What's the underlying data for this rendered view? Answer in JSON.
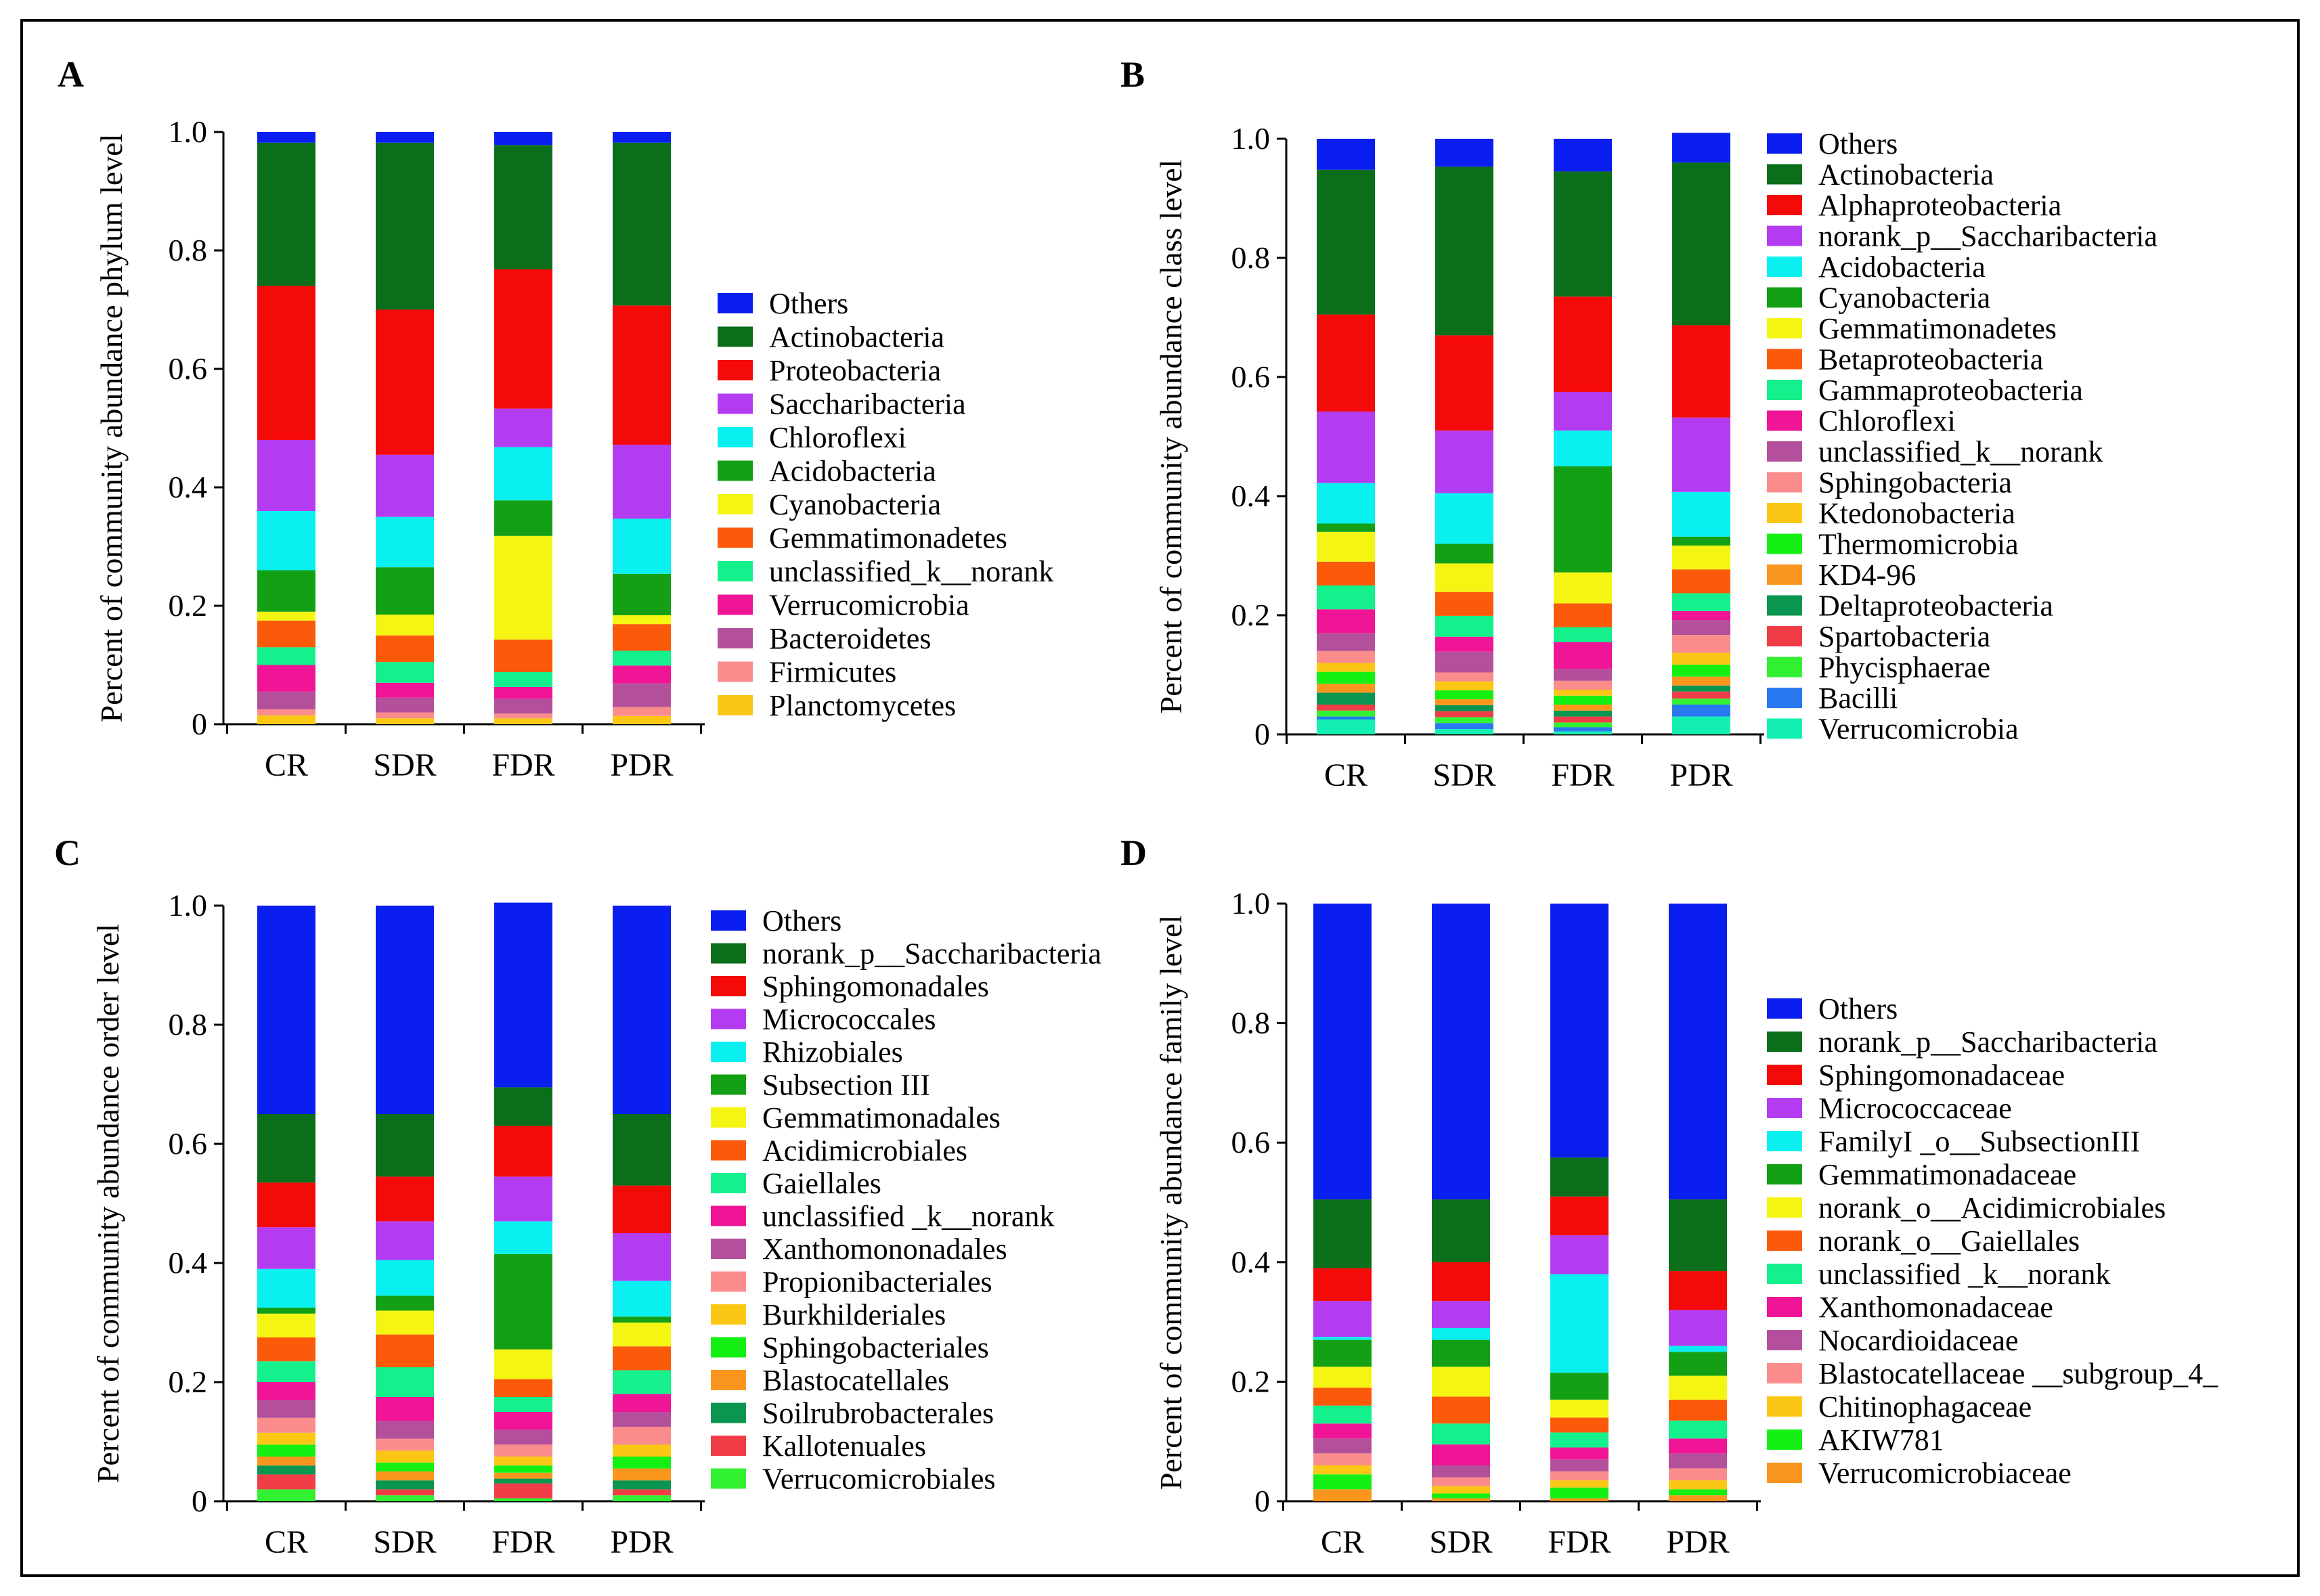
{
  "chart_data": [
    {
      "panel": "A",
      "type": "bar",
      "stacked": true,
      "ylabel": "Percent of community abundance phylum level",
      "ylim": [
        0,
        1.0
      ],
      "yticks": [
        "0",
        "0.2",
        "0.4",
        "0.6",
        "0.8",
        "1.0"
      ],
      "categories": [
        "CR",
        "SDR",
        "FDR",
        "PDR"
      ],
      "legend": [
        "Others",
        "Actinobacteria",
        "Proteobacteria",
        "Saccharibacteria",
        "Chloroflexi",
        "Acidobacteria",
        "Cyanobacteria",
        "Gemmatimonadetes",
        "unclassified_k__norank",
        "Verrucomicrobia",
        "Bacteroidetes",
        "Firmicutes",
        "Planctomycetes"
      ],
      "colors": [
        "#0a1ef0",
        "#0a6e1a",
        "#f50a0a",
        "#b43cf0",
        "#0af0f0",
        "#14a014",
        "#f5f514",
        "#fa5a0a",
        "#14f08c",
        "#f01496",
        "#b4509b",
        "#fa8c8c",
        "#fac814"
      ],
      "series": [
        {
          "name": "Others",
          "values": [
            0.018,
            0.018,
            0.022,
            0.018
          ]
        },
        {
          "name": "Actinobacteria",
          "values": [
            0.242,
            0.282,
            0.21,
            0.275
          ]
        },
        {
          "name": "Proteobacteria",
          "values": [
            0.26,
            0.245,
            0.235,
            0.235
          ]
        },
        {
          "name": "Saccharibacteria",
          "values": [
            0.12,
            0.105,
            0.065,
            0.125
          ]
        },
        {
          "name": "Chloroflexi",
          "values": [
            0.1,
            0.085,
            0.09,
            0.093
          ]
        },
        {
          "name": "Acidobacteria",
          "values": [
            0.07,
            0.08,
            0.06,
            0.07
          ]
        },
        {
          "name": "Cyanobacteria",
          "values": [
            0.015,
            0.035,
            0.175,
            0.015
          ]
        },
        {
          "name": "Gemmatimonadetes",
          "values": [
            0.045,
            0.045,
            0.055,
            0.045
          ]
        },
        {
          "name": "unclassified_k__norank",
          "values": [
            0.03,
            0.035,
            0.025,
            0.025
          ]
        },
        {
          "name": "Verrucomicrobia",
          "values": [
            0.045,
            0.025,
            0.02,
            0.03
          ]
        },
        {
          "name": "Bacteroidetes",
          "values": [
            0.03,
            0.025,
            0.025,
            0.04
          ]
        },
        {
          "name": "Firmicutes",
          "values": [
            0.01,
            0.01,
            0.008,
            0.015
          ]
        },
        {
          "name": "Planctomycetes",
          "values": [
            0.015,
            0.01,
            0.01,
            0.014
          ]
        }
      ]
    },
    {
      "panel": "B",
      "type": "bar",
      "stacked": true,
      "ylabel": "Percent of community abundance class level",
      "ylim": [
        0,
        1.0
      ],
      "yticks": [
        "0",
        "0.2",
        "0.4",
        "0.6",
        "0.8",
        "1.0"
      ],
      "categories": [
        "CR",
        "SDR",
        "FDR",
        "PDR"
      ],
      "legend": [
        "Others",
        "Actinobacteria",
        "Alphaproteobacteria",
        "norank_p__Saccharibacteria",
        "Acidobacteria",
        "Cyanobacteria",
        "Gemmatimonadetes",
        "Betaproteobacteria",
        "Gammaproteobacteria",
        "Chloroflexi",
        "unclassified_k__norank",
        "Sphingobacteria",
        "Ktedonobacteria",
        "Thermomicrobia",
        "KD4-96",
        "Deltaproteobacteria",
        "Spartobacteria",
        "Phycisphaerae",
        "Bacilli",
        "Verrucomicrobia"
      ],
      "colors": [
        "#0a1ef0",
        "#0a6e1a",
        "#f50a0a",
        "#b43cf0",
        "#0af0f0",
        "#14a014",
        "#f5f514",
        "#fa5a0a",
        "#14f08c",
        "#f01496",
        "#b4509b",
        "#fa8c8c",
        "#fac814",
        "#14f014",
        "#fa961e",
        "#0a9650",
        "#f03c46",
        "#32f032",
        "#2878f0",
        "#14f0b4"
      ],
      "series": [
        {
          "name": "Others",
          "values": [
            0.052,
            0.047,
            0.055,
            0.05
          ]
        },
        {
          "name": "Actinobacteria",
          "values": [
            0.243,
            0.283,
            0.21,
            0.273
          ]
        },
        {
          "name": "Alphaproteobacteria",
          "values": [
            0.163,
            0.16,
            0.16,
            0.155
          ]
        },
        {
          "name": "norank_p__Saccharibacteria",
          "values": [
            0.12,
            0.105,
            0.065,
            0.125
          ]
        },
        {
          "name": "Acidobacteria",
          "values": [
            0.068,
            0.085,
            0.06,
            0.075
          ]
        },
        {
          "name": "Cyanobacteria",
          "values": [
            0.014,
            0.033,
            0.178,
            0.015
          ]
        },
        {
          "name": "Gemmatimonadetes",
          "values": [
            0.05,
            0.048,
            0.052,
            0.04
          ]
        },
        {
          "name": "Betaproteobacteria",
          "values": [
            0.04,
            0.04,
            0.04,
            0.04
          ]
        },
        {
          "name": "Gammaproteobacteria",
          "values": [
            0.04,
            0.035,
            0.025,
            0.03
          ]
        },
        {
          "name": "Chloroflexi",
          "values": [
            0.04,
            0.025,
            0.045,
            0.015
          ]
        },
        {
          "name": "unclassified_k__norank",
          "values": [
            0.03,
            0.035,
            0.02,
            0.025
          ]
        },
        {
          "name": "Sphingobacteria",
          "values": [
            0.02,
            0.015,
            0.015,
            0.03
          ]
        },
        {
          "name": "Ktedonobacteria",
          "values": [
            0.015,
            0.015,
            0.01,
            0.02
          ]
        },
        {
          "name": "Thermomicrobia",
          "values": [
            0.02,
            0.015,
            0.015,
            0.02
          ]
        },
        {
          "name": "KD4-96",
          "values": [
            0.015,
            0.01,
            0.01,
            0.015
          ]
        },
        {
          "name": "Deltaproteobacteria",
          "values": [
            0.02,
            0.01,
            0.01,
            0.01
          ]
        },
        {
          "name": "Spartobacteria",
          "values": [
            0.01,
            0.01,
            0.01,
            0.012
          ]
        },
        {
          "name": "Phycisphaerae",
          "values": [
            0.01,
            0.01,
            0.008,
            0.01
          ]
        },
        {
          "name": "Bacilli",
          "values": [
            0.005,
            0.01,
            0.007,
            0.02
          ]
        },
        {
          "name": "Verrucomicrobia",
          "values": [
            0.025,
            0.009,
            0.005,
            0.03
          ]
        }
      ]
    },
    {
      "panel": "C",
      "type": "bar",
      "stacked": true,
      "ylabel": "Percent of community abundance order level",
      "ylim": [
        0,
        1.0
      ],
      "yticks": [
        "0",
        "0.2",
        "0.4",
        "0.6",
        "0.8",
        "1.0"
      ],
      "categories": [
        "CR",
        "SDR",
        "FDR",
        "PDR"
      ],
      "legend": [
        "Others",
        "norank_p__Saccharibacteria",
        "Sphingomonadales",
        "Micrococcales",
        "Rhizobiales",
        "Subsection III",
        "Gemmatimonadales",
        "Acidimicrobiales",
        "Gaiellales",
        "unclassified _k__norank",
        "Xanthomononadales",
        "Propionibacteriales",
        "Burkhilderiales",
        "Sphingobacteriales",
        "Blastocatellales",
        "Soilrubrobacterales",
        "Kallotenuales",
        "Verrucomicrobiales"
      ],
      "colors": [
        "#0a1ef0",
        "#0a6e1a",
        "#f50a0a",
        "#b43cf0",
        "#0af0f0",
        "#14a014",
        "#f5f514",
        "#fa5a0a",
        "#14f08c",
        "#f01496",
        "#b4509b",
        "#fa8c8c",
        "#fac814",
        "#14f014",
        "#fa961e",
        "#0a9650",
        "#f03c46",
        "#32f032"
      ],
      "series": [
        {
          "name": "Others",
          "values": [
            0.35,
            0.35,
            0.31,
            0.35
          ]
        },
        {
          "name": "norank_p__Saccharibacteria",
          "values": [
            0.115,
            0.105,
            0.065,
            0.12
          ]
        },
        {
          "name": "Sphingomonadales",
          "values": [
            0.075,
            0.075,
            0.085,
            0.08
          ]
        },
        {
          "name": "Micrococcales",
          "values": [
            0.07,
            0.065,
            0.075,
            0.08
          ]
        },
        {
          "name": "Rhizobiales",
          "values": [
            0.065,
            0.06,
            0.055,
            0.06
          ]
        },
        {
          "name": "Subsection III",
          "values": [
            0.01,
            0.025,
            0.16,
            0.01
          ]
        },
        {
          "name": "Gemmatimonadales",
          "values": [
            0.04,
            0.04,
            0.05,
            0.04
          ]
        },
        {
          "name": "Acidimicrobiales",
          "values": [
            0.04,
            0.055,
            0.03,
            0.04
          ]
        },
        {
          "name": "Gaiellales",
          "values": [
            0.035,
            0.05,
            0.025,
            0.04
          ]
        },
        {
          "name": "unclassified _k__norank",
          "values": [
            0.03,
            0.04,
            0.03,
            0.03
          ]
        },
        {
          "name": "Xanthomononadales",
          "values": [
            0.03,
            0.03,
            0.025,
            0.025
          ]
        },
        {
          "name": "Propionibacteriales",
          "values": [
            0.025,
            0.02,
            0.02,
            0.03
          ]
        },
        {
          "name": "Burkhilderiales",
          "values": [
            0.02,
            0.02,
            0.015,
            0.02
          ]
        },
        {
          "name": "Sphingobacteriales",
          "values": [
            0.02,
            0.015,
            0.012,
            0.02
          ]
        },
        {
          "name": "Blastocatellales",
          "values": [
            0.015,
            0.015,
            0.01,
            0.02
          ]
        },
        {
          "name": "Soilrubrobacterales",
          "values": [
            0.015,
            0.015,
            0.008,
            0.015
          ]
        },
        {
          "name": "Kallotenuales",
          "values": [
            0.025,
            0.01,
            0.025,
            0.01
          ]
        },
        {
          "name": "Verrucomicrobiales",
          "values": [
            0.02,
            0.01,
            0.005,
            0.01
          ]
        }
      ]
    },
    {
      "panel": "D",
      "type": "bar",
      "stacked": true,
      "ylabel": "Percent of community abundance family level",
      "ylim": [
        0,
        1.0
      ],
      "yticks": [
        "0",
        "0.2",
        "0.4",
        "0.6",
        "0.8",
        "1.0"
      ],
      "categories": [
        "CR",
        "SDR",
        "FDR",
        "PDR"
      ],
      "legend": [
        "Others",
        "norank_p__Saccharibacteria",
        "Sphingomonadaceae",
        "Micrococcaceae",
        "FamilyI _o__SubsectionIII",
        "Gemmatimonadaceae",
        "norank_o__Acidimicrobiales",
        "norank_o__Gaiellales",
        "unclassified _k__norank",
        "Xanthomonadaceae",
        "Nocardioidaceae",
        "Blastocatellaceae __subgroup_4_",
        "Chitinophagaceae",
        "AKIW781",
        "Verrucomicrobiaceae"
      ],
      "colors": [
        "#0a1ef0",
        "#0a6e1a",
        "#f50a0a",
        "#b43cf0",
        "#0af0f0",
        "#14a014",
        "#f5f514",
        "#fa5a0a",
        "#14f08c",
        "#f01496",
        "#b4509b",
        "#fa8c8c",
        "#fac814",
        "#14f014",
        "#fa961e"
      ],
      "series": [
        {
          "name": "Others",
          "values": [
            0.495,
            0.495,
            0.425,
            0.495
          ]
        },
        {
          "name": "norank_p__Saccharibacteria",
          "values": [
            0.115,
            0.105,
            0.065,
            0.12
          ]
        },
        {
          "name": "Sphingomonadaceae",
          "values": [
            0.055,
            0.065,
            0.065,
            0.065
          ]
        },
        {
          "name": "Micrococcaceae",
          "values": [
            0.06,
            0.045,
            0.065,
            0.06
          ]
        },
        {
          "name": "FamilyI _o__SubsectionIII",
          "values": [
            0.005,
            0.02,
            0.165,
            0.01
          ]
        },
        {
          "name": "Gemmatimonadaceae",
          "values": [
            0.045,
            0.045,
            0.045,
            0.04
          ]
        },
        {
          "name": "norank_o__Acidimicrobiales",
          "values": [
            0.035,
            0.05,
            0.03,
            0.04
          ]
        },
        {
          "name": "norank_o__Gaiellales",
          "values": [
            0.03,
            0.045,
            0.025,
            0.035
          ]
        },
        {
          "name": "unclassified _k__norank",
          "values": [
            0.03,
            0.035,
            0.025,
            0.03
          ]
        },
        {
          "name": "Xanthomonadaceae",
          "values": [
            0.025,
            0.035,
            0.02,
            0.025
          ]
        },
        {
          "name": "Nocardioidaceae",
          "values": [
            0.025,
            0.02,
            0.02,
            0.025
          ]
        },
        {
          "name": "Blastocatellaceae __subgroup_4_",
          "values": [
            0.02,
            0.015,
            0.015,
            0.02
          ]
        },
        {
          "name": "Chitinophagaceae",
          "values": [
            0.015,
            0.012,
            0.012,
            0.015
          ]
        },
        {
          "name": "AKIW781",
          "values": [
            0.025,
            0.008,
            0.018,
            0.01
          ]
        },
        {
          "name": "Verrucomicrobiaceae",
          "values": [
            0.02,
            0.005,
            0.005,
            0.01
          ]
        }
      ]
    }
  ]
}
